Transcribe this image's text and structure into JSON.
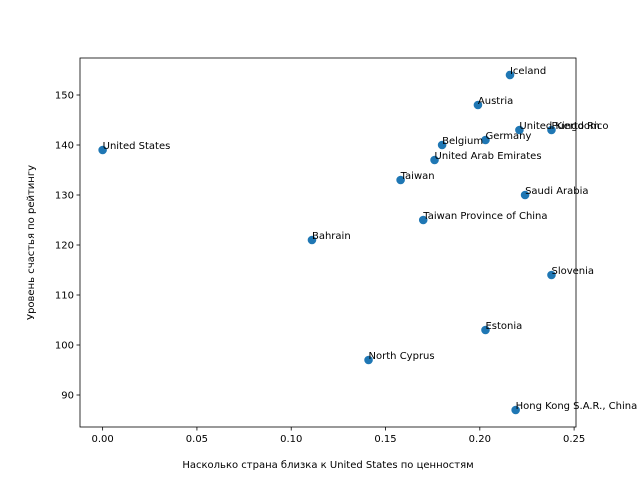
{
  "chart_data": {
    "type": "scatter",
    "xlabel": "Насколько страна близка к United States по ценностям",
    "ylabel": "Уровень счастья по рейтингу",
    "xlim": [
      -0.012,
      0.251
    ],
    "ylim": [
      83.6,
      157.4
    ],
    "x_ticks": [
      "0.00",
      "0.05",
      "0.10",
      "0.15",
      "0.20",
      "0.25"
    ],
    "x_tick_values": [
      0.0,
      0.05,
      0.1,
      0.15,
      0.2,
      0.25
    ],
    "y_ticks": [
      "90",
      "100",
      "110",
      "120",
      "130",
      "140",
      "150"
    ],
    "y_tick_values": [
      90,
      100,
      110,
      120,
      130,
      140,
      150
    ],
    "grid": false,
    "marker_color": "#1f77b4",
    "points": [
      {
        "label": "United States",
        "x": 0.0,
        "y": 139
      },
      {
        "label": "Iceland",
        "x": 0.216,
        "y": 154
      },
      {
        "label": "Austria",
        "x": 0.199,
        "y": 148
      },
      {
        "label": "United Kingdom",
        "x": 0.221,
        "y": 143
      },
      {
        "label": "Puerto Rico",
        "x": 0.238,
        "y": 143
      },
      {
        "label": "Germany",
        "x": 0.203,
        "y": 141
      },
      {
        "label": "Belgium",
        "x": 0.18,
        "y": 140
      },
      {
        "label": "United Arab Emirates",
        "x": 0.176,
        "y": 137
      },
      {
        "label": "Taiwan",
        "x": 0.158,
        "y": 133
      },
      {
        "label": "Saudi Arabia",
        "x": 0.224,
        "y": 130
      },
      {
        "label": "Taiwan Province of China",
        "x": 0.17,
        "y": 125
      },
      {
        "label": "Bahrain",
        "x": 0.111,
        "y": 121
      },
      {
        "label": "Slovenia",
        "x": 0.238,
        "y": 114
      },
      {
        "label": "Estonia",
        "x": 0.203,
        "y": 103
      },
      {
        "label": "North Cyprus",
        "x": 0.141,
        "y": 97
      },
      {
        "label": "Hong Kong S.A.R., China",
        "x": 0.219,
        "y": 87
      }
    ]
  }
}
